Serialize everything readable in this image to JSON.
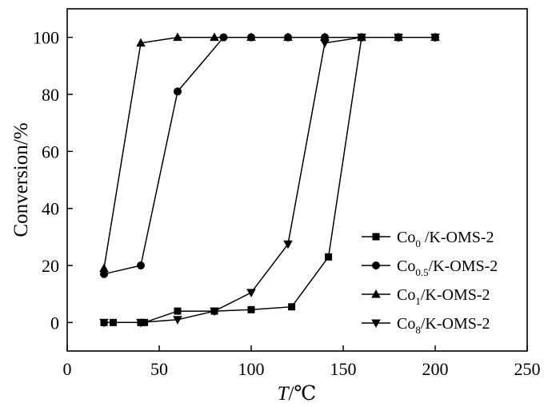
{
  "chart_data": {
    "type": "line",
    "xlabel_italic": "T",
    "xlabel_unit": "/℃",
    "ylabel": "Conversion/%",
    "xlim": [
      0,
      250
    ],
    "ylim": [
      -10,
      110
    ],
    "x_ticks": [
      0,
      50,
      100,
      150,
      200,
      250
    ],
    "y_ticks": [
      0,
      20,
      40,
      60,
      80,
      100
    ],
    "grid": false,
    "legend_position": "lower-right",
    "series": [
      {
        "name": "Co0 /K-OMS-2",
        "label_base": "Co",
        "label_sub": "0",
        "label_rest": " /K-OMS-2",
        "marker": "square",
        "points": [
          [
            20,
            0
          ],
          [
            25,
            0
          ],
          [
            40,
            0
          ],
          [
            42,
            0
          ],
          [
            60,
            4
          ],
          [
            80,
            4
          ],
          [
            100,
            4.5
          ],
          [
            122,
            5.5
          ],
          [
            142,
            23
          ],
          [
            160,
            100
          ],
          [
            180,
            100
          ],
          [
            200,
            100
          ]
        ]
      },
      {
        "name": "Co0.5/K-OMS-2",
        "label_base": "Co",
        "label_sub": "0.5",
        "label_rest": "/K-OMS-2",
        "marker": "circle",
        "points": [
          [
            20,
            17
          ],
          [
            40,
            20
          ],
          [
            60,
            81
          ],
          [
            85,
            100
          ],
          [
            100,
            100
          ],
          [
            120,
            100
          ],
          [
            140,
            100
          ],
          [
            160,
            100
          ],
          [
            180,
            100
          ],
          [
            200,
            100
          ]
        ]
      },
      {
        "name": "Co1/K-OMS-2",
        "label_base": "Co",
        "label_sub": "1",
        "label_rest": "/K-OMS-2",
        "marker": "triangle-up",
        "points": [
          [
            20,
            19
          ],
          [
            40,
            98
          ],
          [
            60,
            100
          ],
          [
            80,
            100
          ],
          [
            100,
            100
          ],
          [
            120,
            100
          ],
          [
            140,
            100
          ],
          [
            160,
            100
          ],
          [
            180,
            100
          ],
          [
            200,
            100
          ]
        ]
      },
      {
        "name": "Co8/K-OMS-2",
        "label_base": "Co",
        "label_sub": "8",
        "label_rest": "/K-OMS-2",
        "marker": "triangle-down",
        "points": [
          [
            20,
            0
          ],
          [
            40,
            0
          ],
          [
            60,
            1
          ],
          [
            80,
            4
          ],
          [
            100,
            10.5
          ],
          [
            120,
            27.5
          ],
          [
            140,
            98
          ],
          [
            160,
            100
          ],
          [
            180,
            100
          ],
          [
            200,
            100
          ]
        ]
      }
    ]
  }
}
